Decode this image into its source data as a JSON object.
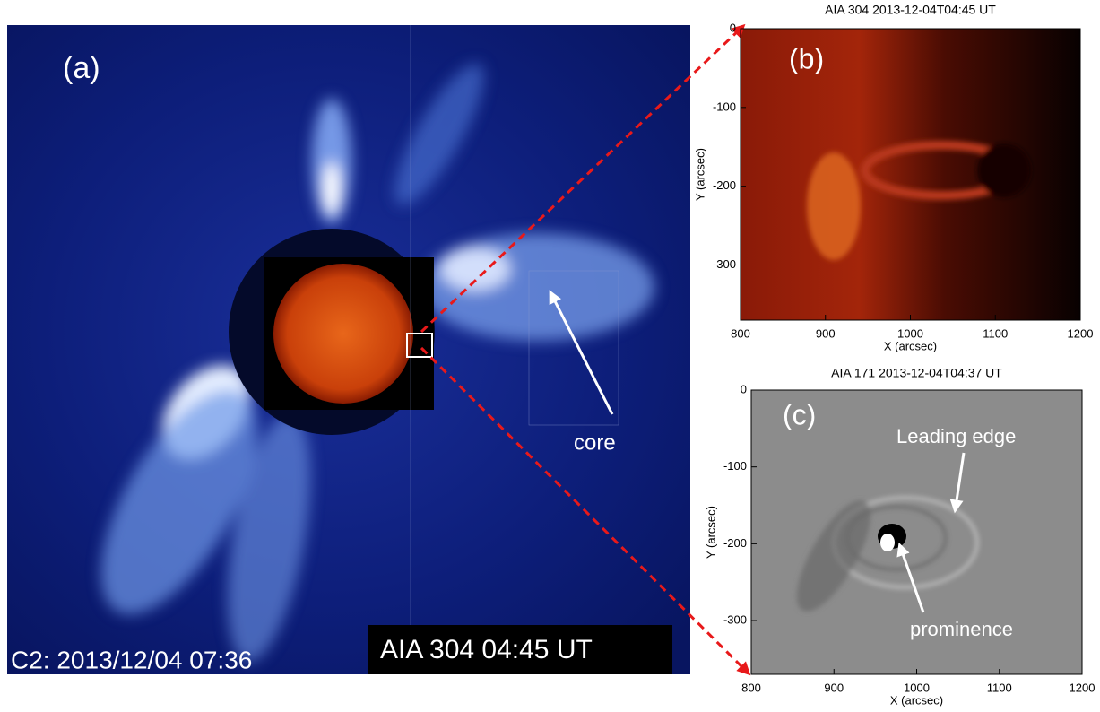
{
  "panels": {
    "a": {
      "label": "(a)",
      "annotation": "core",
      "timestamp": "C2: 2013/12/04 07:36",
      "inset_label": "AIA 304 04:45 UT"
    },
    "b": {
      "title": "AIA 304 2013-12-04T04:45 UT",
      "label": "(b)",
      "xlabel": "X (arcsec)",
      "ylabel": "Y (arcsec)",
      "xlim": [
        800,
        1200
      ],
      "ylim": [
        0,
        -370
      ],
      "xticks": [
        800,
        900,
        1000,
        1100,
        1200
      ],
      "yticks": [
        0,
        -100,
        -200,
        -300
      ]
    },
    "c": {
      "title": "AIA 171 2013-12-04T04:37 UT",
      "label": "(c)",
      "xlabel": "X (arcsec)",
      "ylabel": "Y (arcsec)",
      "annotations": [
        "Leading edge",
        "prominence"
      ],
      "xlim": [
        800,
        1200
      ],
      "ylim": [
        0,
        -370
      ],
      "xticks": [
        800,
        900,
        1000,
        1100,
        1200
      ],
      "yticks": [
        0,
        -100,
        -200,
        -300
      ]
    }
  }
}
